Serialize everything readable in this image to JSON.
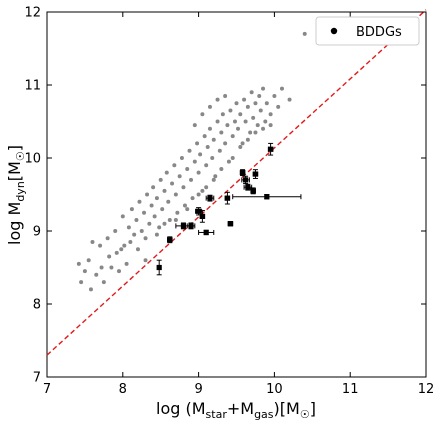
{
  "chart_data": {
    "type": "scatter",
    "xlabel": "log (M_star+M_gas)[M_☉]",
    "ylabel": "log M_dyn[M_☉]",
    "xlim": [
      7,
      12
    ],
    "ylim": [
      7,
      12
    ],
    "xticks": [
      7,
      8,
      9,
      10,
      11,
      12
    ],
    "yticks": [
      7,
      8,
      9,
      10,
      11,
      12
    ],
    "reference_line": {
      "style": "dashed",
      "color": "#e31a1c",
      "points": [
        [
          7,
          7.3
        ],
        [
          12,
          12.03
        ]
      ]
    },
    "legend": {
      "position": "top-right",
      "entries": [
        "BDDGs"
      ]
    },
    "colors": {
      "background_points": "#888888",
      "bddg_points": "#000000",
      "line": "#e31a1c"
    },
    "series": [
      {
        "name": "",
        "marker": "small-gray-dot",
        "points": [
          [
            7.42,
            8.55
          ],
          [
            7.45,
            8.3
          ],
          [
            7.5,
            8.45
          ],
          [
            7.55,
            8.6
          ],
          [
            7.58,
            8.2
          ],
          [
            7.6,
            8.85
          ],
          [
            7.65,
            8.4
          ],
          [
            7.7,
            8.8
          ],
          [
            7.72,
            8.5
          ],
          [
            7.75,
            8.3
          ],
          [
            7.8,
            8.9
          ],
          [
            7.82,
            8.65
          ],
          [
            7.85,
            8.5
          ],
          [
            7.9,
            9.0
          ],
          [
            7.92,
            8.7
          ],
          [
            7.95,
            8.45
          ],
          [
            7.98,
            8.75
          ],
          [
            8.0,
            9.2
          ],
          [
            8.02,
            8.8
          ],
          [
            8.05,
            8.55
          ],
          [
            8.08,
            9.05
          ],
          [
            8.1,
            8.85
          ],
          [
            8.12,
            9.3
          ],
          [
            8.15,
            8.95
          ],
          [
            8.18,
            9.15
          ],
          [
            8.2,
            8.75
          ],
          [
            8.22,
            9.4
          ],
          [
            8.25,
            9.0
          ],
          [
            8.28,
            9.25
          ],
          [
            8.3,
            8.9
          ],
          [
            8.32,
            9.5
          ],
          [
            8.35,
            9.1
          ],
          [
            8.38,
            9.35
          ],
          [
            8.4,
            9.6
          ],
          [
            8.42,
            9.2
          ],
          [
            8.45,
            9.45
          ],
          [
            8.48,
            9.05
          ],
          [
            8.5,
            9.7
          ],
          [
            8.52,
            9.3
          ],
          [
            8.55,
            9.55
          ],
          [
            8.58,
            9.8
          ],
          [
            8.6,
            9.4
          ],
          [
            8.62,
            9.15
          ],
          [
            8.65,
            9.65
          ],
          [
            8.68,
            9.9
          ],
          [
            8.7,
            9.5
          ],
          [
            8.72,
            9.25
          ],
          [
            8.75,
            9.75
          ],
          [
            8.78,
            10.0
          ],
          [
            8.8,
            9.6
          ],
          [
            8.82,
            9.35
          ],
          [
            8.85,
            9.85
          ],
          [
            8.88,
            10.1
          ],
          [
            8.9,
            9.7
          ],
          [
            8.92,
            9.45
          ],
          [
            8.95,
            9.95
          ],
          [
            8.98,
            10.2
          ],
          [
            9.0,
            9.8
          ],
          [
            9.02,
            10.05
          ],
          [
            9.05,
            9.55
          ],
          [
            9.08,
            10.3
          ],
          [
            9.1,
            9.9
          ],
          [
            9.12,
            10.15
          ],
          [
            9.15,
            10.4
          ],
          [
            9.18,
            10.0
          ],
          [
            9.2,
            10.25
          ],
          [
            9.22,
            9.75
          ],
          [
            9.25,
            10.5
          ],
          [
            9.28,
            10.1
          ],
          [
            9.3,
            10.35
          ],
          [
            9.32,
            10.6
          ],
          [
            9.35,
            10.2
          ],
          [
            9.38,
            10.45
          ],
          [
            9.4,
            9.95
          ],
          [
            9.42,
            10.65
          ],
          [
            9.45,
            10.3
          ],
          [
            9.48,
            10.5
          ],
          [
            9.5,
            10.75
          ],
          [
            9.52,
            10.4
          ],
          [
            9.55,
            10.6
          ],
          [
            9.58,
            10.2
          ],
          [
            9.6,
            10.8
          ],
          [
            9.62,
            10.5
          ],
          [
            9.65,
            10.7
          ],
          [
            9.68,
            10.35
          ],
          [
            9.7,
            10.9
          ],
          [
            9.72,
            10.55
          ],
          [
            9.75,
            10.75
          ],
          [
            9.78,
            10.45
          ],
          [
            9.8,
            10.85
          ],
          [
            9.82,
            10.65
          ],
          [
            9.85,
            10.95
          ],
          [
            9.88,
            10.5
          ],
          [
            9.9,
            10.75
          ],
          [
            9.95,
            10.6
          ],
          [
            10.0,
            10.85
          ],
          [
            10.05,
            10.7
          ],
          [
            10.1,
            10.95
          ],
          [
            10.2,
            10.8
          ],
          [
            10.4,
            11.7
          ],
          [
            8.3,
            8.6
          ],
          [
            8.45,
            8.95
          ],
          [
            8.55,
            9.1
          ],
          [
            8.7,
            9.15
          ],
          [
            8.85,
            9.3
          ],
          [
            9.0,
            9.5
          ],
          [
            9.1,
            9.6
          ],
          [
            9.2,
            9.7
          ],
          [
            9.3,
            9.85
          ],
          [
            9.45,
            10.0
          ],
          [
            9.55,
            10.15
          ],
          [
            9.65,
            10.25
          ],
          [
            9.75,
            10.35
          ],
          [
            9.85,
            10.4
          ],
          [
            9.95,
            10.45
          ],
          [
            8.95,
            10.45
          ],
          [
            9.05,
            10.6
          ],
          [
            9.15,
            10.7
          ],
          [
            9.25,
            10.8
          ],
          [
            9.35,
            10.85
          ]
        ]
      },
      {
        "name": "BDDGs",
        "marker": "black-square-with-errorbars",
        "points": [
          {
            "x": 8.48,
            "y": 8.5,
            "xerr": 0.0,
            "yerr": 0.1
          },
          {
            "x": 8.62,
            "y": 8.88,
            "xerr": 0.03,
            "yerr": 0.04
          },
          {
            "x": 8.8,
            "y": 9.07,
            "xerr": 0.1,
            "yerr": 0.04
          },
          {
            "x": 8.9,
            "y": 9.07,
            "xerr": 0.05,
            "yerr": 0.04
          },
          {
            "x": 9.0,
            "y": 9.27,
            "xerr": 0.04,
            "yerr": 0.05
          },
          {
            "x": 9.05,
            "y": 9.2,
            "xerr": 0.03,
            "yerr": 0.08
          },
          {
            "x": 9.1,
            "y": 8.98,
            "xerr": 0.1,
            "yerr": 0.03
          },
          {
            "x": 9.15,
            "y": 9.45,
            "xerr": 0.05,
            "yerr": 0.04
          },
          {
            "x": 9.38,
            "y": 9.45,
            "xerr": 0.03,
            "yerr": 0.08
          },
          {
            "x": 9.42,
            "y": 9.1,
            "xerr": 0.03,
            "yerr": 0.03
          },
          {
            "x": 9.58,
            "y": 9.8,
            "xerr": 0.03,
            "yerr": 0.04
          },
          {
            "x": 9.62,
            "y": 9.7,
            "xerr": 0.05,
            "yerr": 0.05
          },
          {
            "x": 9.65,
            "y": 9.6,
            "xerr": 0.05,
            "yerr": 0.04
          },
          {
            "x": 9.72,
            "y": 9.55,
            "xerr": 0.03,
            "yerr": 0.04
          },
          {
            "x": 9.75,
            "y": 9.78,
            "xerr": 0.03,
            "yerr": 0.06
          },
          {
            "x": 9.9,
            "y": 9.47,
            "xerr": 0.45,
            "yerr": 0.03
          },
          {
            "x": 9.95,
            "y": 10.12,
            "xerr": 0.03,
            "yerr": 0.08
          }
        ]
      }
    ]
  }
}
